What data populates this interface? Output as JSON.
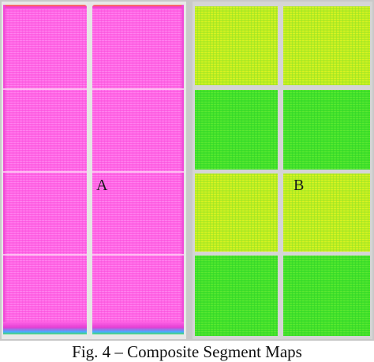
{
  "figure": {
    "caption": "Fig. 4 – Composite Segment Maps"
  },
  "panels": [
    {
      "label": "A",
      "color": "#ff66e6",
      "rows": 4,
      "columns": 2
    },
    {
      "label": "B",
      "color": "#55e52d",
      "rows": 4,
      "columns": 2
    }
  ]
}
